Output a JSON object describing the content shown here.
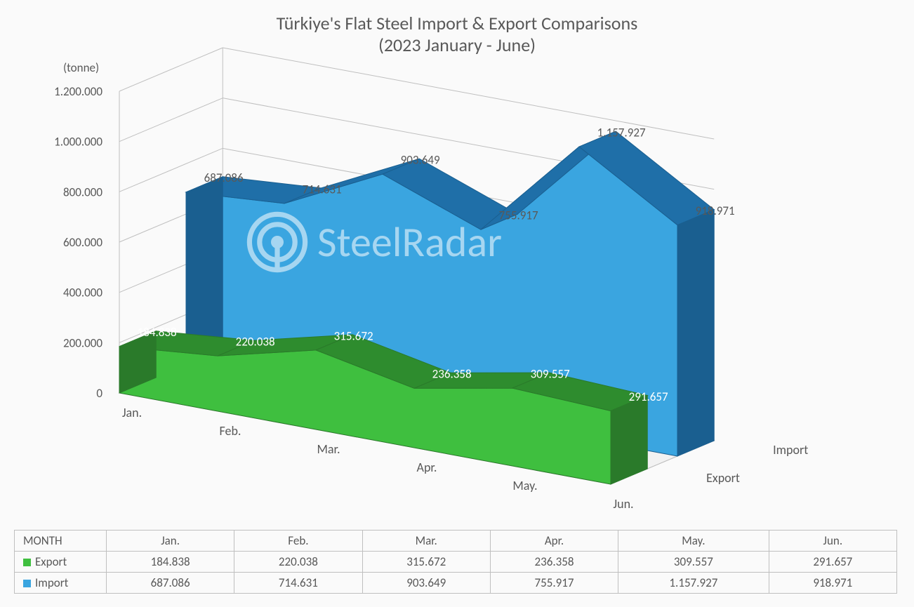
{
  "title_line1": "Türkiye's Flat Steel Import & Export Comparisons",
  "title_line2": "(2023 January - June)",
  "unit_label": "(tonne)",
  "month_axis_label": "MONTH",
  "chart": {
    "type": "3d-area",
    "background_color": "#fafafa",
    "grid_color": "#bfbfbf",
    "text_color": "#595959",
    "title_fontsize": 26,
    "label_fontsize": 17,
    "y_axis": {
      "min": 0,
      "max": 1200000,
      "step": 200000,
      "ticks": [
        "0",
        "200.000",
        "400.000",
        "600.000",
        "800.000",
        "1.000.000",
        "1.200.000"
      ]
    },
    "categories": [
      "Jan.",
      "Feb.",
      "Mar.",
      "Apr.",
      "May.",
      "Jun."
    ],
    "series": [
      {
        "name": "Export",
        "color_top": "#2e8c2e",
        "color_front": "#3fbf3f",
        "color_side": "#2a7a2a",
        "values": [
          184838,
          220038,
          315672,
          236358,
          309557,
          291657
        ],
        "labels": [
          "184.838",
          "220.038",
          "315.672",
          "236.358",
          "309.557",
          "291.657"
        ]
      },
      {
        "name": "Import",
        "color_top": "#1f6fa8",
        "color_front": "#3aa5e0",
        "color_side": "#1a5f90",
        "values": [
          687086,
          714631,
          903649,
          755917,
          1157927,
          918971
        ],
        "labels": [
          "687.086",
          "714.631",
          "903.649",
          "755.917",
          "1.157.927",
          "918.971"
        ]
      }
    ]
  },
  "watermark_text": "SteelRadar",
  "table": {
    "header_label": "MONTH",
    "columns": [
      "Jan.",
      "Feb.",
      "Mar.",
      "Apr.",
      "May.",
      "Jun."
    ],
    "rows": [
      {
        "name": "Export",
        "color": "#3fbf3f",
        "cells": [
          "184.838",
          "220.038",
          "315.672",
          "236.358",
          "309.557",
          "291.657"
        ]
      },
      {
        "name": "Import",
        "color": "#3aa5e0",
        "cells": [
          "687.086",
          "714.631",
          "903.649",
          "755.917",
          "1.157.927",
          "918.971"
        ]
      }
    ]
  }
}
